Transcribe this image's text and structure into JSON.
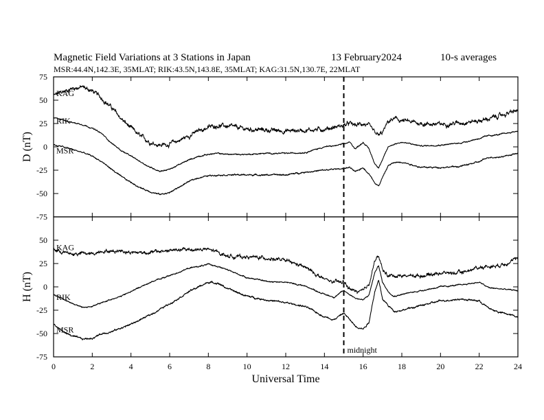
{
  "title_left": "Magnetic Field Variations at 3 Stations in Japan",
  "title_date": "13 February2024",
  "title_right": "10-s averages",
  "stations_line": "MSR:44.4N,142.3E, 35MLAT;  RIK:43.5N,143.8E, 35MLAT;  KAG:31.5N,130.7E, 22MLAT",
  "colors": {
    "trace": "#000000",
    "axis": "#000000",
    "background": "#ffffff"
  },
  "chart_data": [
    {
      "type": "line",
      "panel": "D",
      "ylabel": "D (nT)",
      "xlabel": "",
      "xlim": [
        0,
        24
      ],
      "ylim": [
        -75,
        75
      ],
      "yticks": [
        "75",
        "50",
        "25",
        "0",
        "-25",
        "-50",
        "-75"
      ],
      "xticks": [],
      "grid": false,
      "series": [
        {
          "name": "KAG",
          "noise": 2.4,
          "x": [
            0,
            0.5,
            1,
            1.5,
            2,
            2.5,
            3,
            3.5,
            4,
            4.5,
            5,
            5.5,
            6,
            6.5,
            7,
            7.5,
            8,
            8.5,
            9,
            10,
            11,
            12,
            13,
            14,
            14.5,
            15,
            15.3,
            15.6,
            16,
            16.3,
            16.6,
            16.8,
            17,
            17.3,
            17.6,
            18,
            19,
            20,
            21,
            22,
            22.5,
            23,
            24
          ],
          "y": [
            55,
            59,
            63,
            64,
            60,
            52,
            42,
            30,
            20,
            11,
            5,
            2,
            3,
            7,
            12,
            17,
            21,
            23,
            22,
            19,
            18,
            17,
            18,
            19,
            21,
            23,
            25,
            23,
            25,
            22,
            15,
            12,
            15,
            27,
            30,
            28,
            25,
            24,
            26,
            28,
            30,
            33,
            39
          ]
        },
        {
          "name": "RIK",
          "noise": 0.7,
          "x": [
            0,
            0.5,
            1,
            1.5,
            2,
            2.5,
            3,
            3.5,
            4,
            4.5,
            5,
            5.5,
            6,
            6.5,
            7,
            7.5,
            8,
            8.5,
            9,
            10,
            11,
            12,
            13,
            14,
            14.5,
            15,
            15.3,
            15.6,
            16,
            16.3,
            16.6,
            16.8,
            17,
            17.3,
            17.6,
            18,
            19,
            20,
            21,
            22,
            22.5,
            23,
            24
          ],
          "y": [
            31,
            29,
            26,
            24,
            20,
            14,
            4,
            -4,
            -10,
            -16,
            -22,
            -26,
            -24,
            -19,
            -14,
            -10,
            -8,
            -7,
            -8,
            -8,
            -7,
            -7,
            -6,
            0,
            1,
            3,
            5,
            -2,
            5,
            -2,
            -18,
            -22,
            -14,
            0,
            3,
            5,
            1,
            2,
            4,
            9,
            12,
            13,
            17
          ]
        },
        {
          "name": "MSR",
          "noise": 0.8,
          "x": [
            0,
            0.5,
            1,
            1.5,
            2,
            2.5,
            3,
            3.5,
            4,
            4.5,
            5,
            5.5,
            6,
            6.5,
            7,
            7.5,
            8,
            8.5,
            9,
            10,
            11,
            12,
            13,
            14,
            14.5,
            15,
            15.3,
            15.6,
            16,
            16.3,
            16.6,
            16.8,
            17,
            17.3,
            17.6,
            18,
            19,
            20,
            21,
            22,
            22.5,
            23,
            24
          ],
          "y": [
            2,
            0,
            -3,
            -6,
            -10,
            -16,
            -24,
            -32,
            -38,
            -44,
            -48,
            -51,
            -49,
            -43,
            -37,
            -33,
            -31,
            -30,
            -30,
            -30,
            -30,
            -30,
            -27,
            -25,
            -24,
            -23,
            -22,
            -27,
            -22,
            -29,
            -38,
            -42,
            -33,
            -20,
            -17,
            -16,
            -22,
            -22,
            -21,
            -16,
            -11,
            -11,
            -7
          ]
        }
      ]
    },
    {
      "type": "line",
      "panel": "H",
      "ylabel": "H (nT)",
      "xlabel": "Universal Time",
      "xlim": [
        0,
        24
      ],
      "ylim": [
        -75,
        75
      ],
      "yticks": [
        "75",
        "50",
        "25",
        "0",
        "-25",
        "-50",
        "-75"
      ],
      "xticks": [
        "0",
        "2",
        "4",
        "6",
        "8",
        "10",
        "12",
        "14",
        "16",
        "18",
        "20",
        "22",
        "24"
      ],
      "grid": false,
      "annotation": {
        "text": "midnight",
        "x": 15
      },
      "series": [
        {
          "name": "KAG",
          "noise": 2.0,
          "x": [
            0,
            0.5,
            1,
            1.5,
            2,
            2.5,
            3,
            3.5,
            4,
            5,
            6,
            7,
            8,
            8.5,
            9,
            10,
            11,
            12,
            13,
            14,
            14.5,
            15,
            15.3,
            15.6,
            16,
            16.3,
            16.6,
            16.8,
            17,
            17.3,
            17.6,
            18,
            19,
            20,
            21,
            22,
            22.5,
            23,
            24
          ],
          "y": [
            40,
            37,
            35,
            36,
            35,
            39,
            38,
            39,
            37,
            37,
            39,
            40,
            40,
            37,
            33,
            32,
            31,
            28,
            21,
            8,
            5,
            5,
            -2,
            -5,
            -5,
            3,
            28,
            33,
            18,
            12,
            12,
            12,
            12,
            15,
            15,
            21,
            22,
            23,
            30
          ]
        },
        {
          "name": "RIK",
          "noise": 0.7,
          "x": [
            0,
            0.5,
            1,
            1.5,
            2,
            2.5,
            3,
            3.5,
            4,
            5,
            6,
            7,
            8,
            8.5,
            9,
            10,
            11,
            12,
            13,
            14,
            14.5,
            15,
            15.3,
            15.6,
            16,
            16.3,
            16.6,
            16.8,
            17,
            17.3,
            17.6,
            18,
            19,
            20,
            21,
            22,
            22.5,
            23,
            24
          ],
          "y": [
            -8,
            -13,
            -18,
            -22,
            -21,
            -17,
            -13,
            -10,
            -5,
            5,
            12,
            20,
            24,
            22,
            18,
            10,
            6,
            5,
            1,
            -8,
            -11,
            -4,
            -8,
            -12,
            -14,
            -9,
            15,
            23,
            5,
            -5,
            -10,
            -8,
            -4,
            0,
            2,
            5,
            -1,
            -2,
            -4
          ]
        },
        {
          "name": "MSR",
          "noise": 1.0,
          "x": [
            0,
            0.5,
            1,
            1.5,
            2,
            2.5,
            3,
            3.5,
            4,
            5,
            6,
            7,
            8,
            8.5,
            9,
            10,
            11,
            12,
            13,
            14,
            14.5,
            15,
            15.3,
            15.6,
            16,
            16.3,
            16.6,
            16.8,
            17,
            17.3,
            17.6,
            18,
            19,
            20,
            21,
            22,
            22.5,
            23,
            24
          ],
          "y": [
            -40,
            -48,
            -53,
            -56,
            -55,
            -50,
            -48,
            -44,
            -40,
            -30,
            -18,
            -5,
            5,
            4,
            -2,
            -10,
            -14,
            -17,
            -21,
            -32,
            -35,
            -28,
            -35,
            -42,
            -45,
            -38,
            -5,
            7,
            -13,
            -20,
            -26,
            -25,
            -20,
            -15,
            -13,
            -15,
            -23,
            -27,
            -32
          ]
        }
      ]
    }
  ]
}
